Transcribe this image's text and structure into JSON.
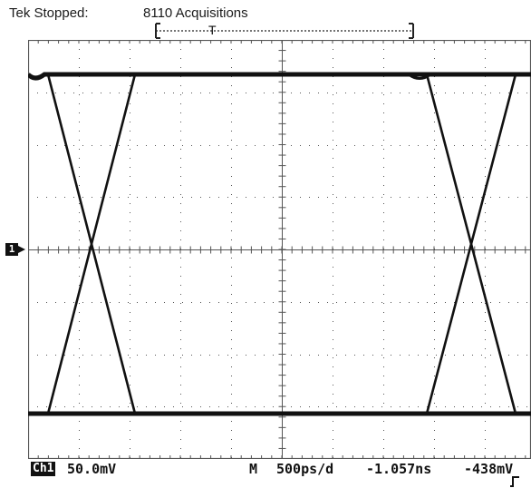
{
  "status": {
    "state": "Tek Stopped:",
    "acquisitions": "8110 Acquisitions"
  },
  "trigger_marker": {
    "label": "T"
  },
  "channel_marker": {
    "label": "1"
  },
  "readout": {
    "channel": "Ch1",
    "channel_scale": "50.0mV",
    "timebase_prefix": "M",
    "timebase": "500ps/d",
    "time_position": "-1.057ns",
    "trigger_level": "-438mV"
  },
  "icons": {
    "trigger_slope": "rising-edge-icon",
    "channel_ground": "arrow-right-icon"
  },
  "colors": {
    "trace": "#111111",
    "graticule": "#555555",
    "background": "#ffffff"
  }
}
